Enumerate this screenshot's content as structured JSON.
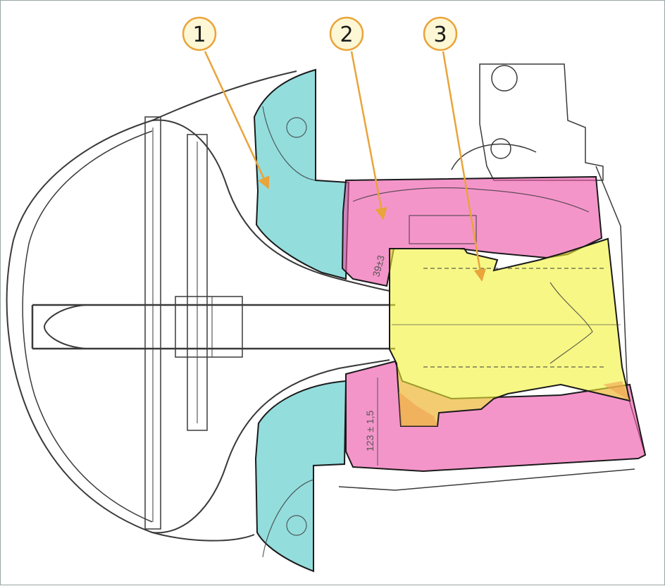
{
  "colors": {
    "part_1": "#4cc6c6",
    "part_2": "#ec4fa6",
    "part_3": "#f2f236",
    "overlap": "#f0a052",
    "callout_fill": "#fdf7d6",
    "callout_stroke": "#e9a43a",
    "leader": "#e9a43a",
    "line_art": "#3a3a3a"
  },
  "callouts": [
    {
      "number": "1"
    },
    {
      "number": "2"
    },
    {
      "number": "3"
    }
  ],
  "dimensions": {
    "lower_height": "123 ± 1,5",
    "upper_height": "39±3"
  }
}
